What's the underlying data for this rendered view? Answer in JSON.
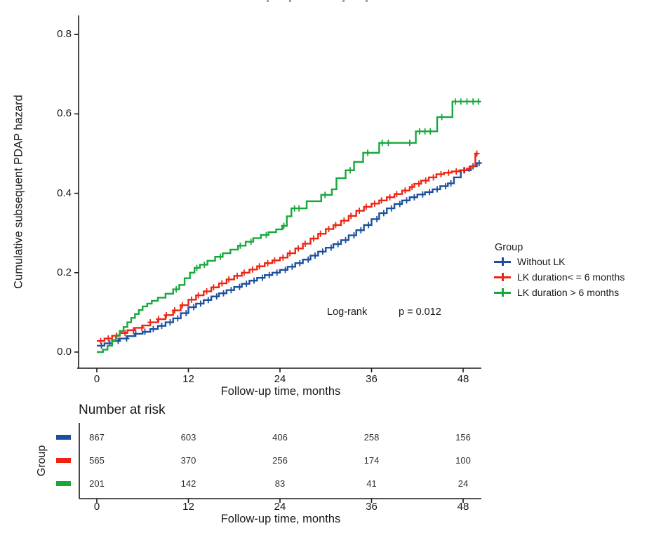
{
  "page": {
    "background": "#ffffff"
  },
  "chart_data": {
    "type": "line",
    "variant": "step-cumulative-hazard (Kaplan-Meier style with censor marks)",
    "title": "",
    "xlabel": "Follow-up time, months",
    "ylabel": "Cumulative subsequent PDAP hazard",
    "xlim": [
      0,
      50.5
    ],
    "ylim": [
      0,
      0.85
    ],
    "grid": false,
    "x_tick_values": [
      0,
      12,
      24,
      36,
      48
    ],
    "x_ticks": [
      "0",
      "12",
      "24",
      "36",
      "48"
    ],
    "y_tick_values": [
      0,
      0.2,
      0.4,
      0.6,
      0.8
    ],
    "y_ticks": [
      "0.0",
      "0.2",
      "0.4",
      "0.6",
      "0.8"
    ],
    "annotation": {
      "test_label": "Log-rank",
      "p_label": "p = 0.012"
    },
    "legend": {
      "title": "Group",
      "position": "right-middle"
    },
    "series": [
      {
        "name": "Without LK",
        "color": "#1c4f9f",
        "end_month": 50.4,
        "points": [
          [
            0,
            0.016
          ],
          [
            1,
            0.022
          ],
          [
            2,
            0.028
          ],
          [
            3,
            0.034
          ],
          [
            4,
            0.04
          ],
          [
            5,
            0.046
          ],
          [
            6,
            0.051
          ],
          [
            7,
            0.058
          ],
          [
            8,
            0.066
          ],
          [
            9,
            0.075
          ],
          [
            10,
            0.085
          ],
          [
            11,
            0.098
          ],
          [
            12,
            0.113
          ],
          [
            13,
            0.122
          ],
          [
            14,
            0.131
          ],
          [
            15,
            0.14
          ],
          [
            16,
            0.148
          ],
          [
            17,
            0.156
          ],
          [
            18,
            0.164
          ],
          [
            19,
            0.172
          ],
          [
            20,
            0.18
          ],
          [
            21,
            0.187
          ],
          [
            22,
            0.194
          ],
          [
            23,
            0.2
          ],
          [
            24,
            0.207
          ],
          [
            25,
            0.215
          ],
          [
            26,
            0.224
          ],
          [
            27,
            0.233
          ],
          [
            28,
            0.243
          ],
          [
            29,
            0.253
          ],
          [
            30,
            0.263
          ],
          [
            31,
            0.272
          ],
          [
            32,
            0.282
          ],
          [
            33,
            0.294
          ],
          [
            34,
            0.307
          ],
          [
            35,
            0.32
          ],
          [
            36,
            0.335
          ],
          [
            37,
            0.35
          ],
          [
            38,
            0.362
          ],
          [
            39,
            0.373
          ],
          [
            40,
            0.382
          ],
          [
            41,
            0.39
          ],
          [
            42,
            0.397
          ],
          [
            43,
            0.403
          ],
          [
            44,
            0.41
          ],
          [
            45,
            0.418
          ],
          [
            46,
            0.425
          ],
          [
            46.8,
            0.44
          ],
          [
            47.7,
            0.458
          ],
          [
            49,
            0.468
          ],
          [
            49.8,
            0.476
          ]
        ],
        "censor_months": [
          0.6,
          1.7,
          2.8,
          3.9,
          5.1,
          6.3,
          7.4,
          8.5,
          9.6,
          10.6,
          11.7,
          12.7,
          13.6,
          14.6,
          15.7,
          16.6,
          17.6,
          18.7,
          19.6,
          20.6,
          21.7,
          22.6,
          23.6,
          24.7,
          25.6,
          26.6,
          27.7,
          28.6,
          29.6,
          30.7,
          31.6,
          32.6,
          33.7,
          34.6,
          35.6,
          36.7,
          37.6,
          38.6,
          39.7,
          40.6,
          41.6,
          42.7,
          43.6,
          44.6,
          45.7,
          46.4,
          48.2,
          49.3,
          50.1
        ]
      },
      {
        "name": "LK duration< = 6 months",
        "color": "#ee2412",
        "end_month": 50.0,
        "points": [
          [
            0,
            0.028
          ],
          [
            1,
            0.034
          ],
          [
            2,
            0.041
          ],
          [
            3,
            0.048
          ],
          [
            4,
            0.055
          ],
          [
            5,
            0.061
          ],
          [
            6,
            0.067
          ],
          [
            7,
            0.075
          ],
          [
            8,
            0.083
          ],
          [
            9,
            0.093
          ],
          [
            10,
            0.105
          ],
          [
            11,
            0.118
          ],
          [
            12,
            0.132
          ],
          [
            13,
            0.143
          ],
          [
            14,
            0.153
          ],
          [
            15,
            0.163
          ],
          [
            16,
            0.173
          ],
          [
            17,
            0.183
          ],
          [
            18,
            0.192
          ],
          [
            19,
            0.2
          ],
          [
            20,
            0.208
          ],
          [
            21,
            0.216
          ],
          [
            22,
            0.224
          ],
          [
            23,
            0.231
          ],
          [
            24,
            0.238
          ],
          [
            25,
            0.249
          ],
          [
            26,
            0.261
          ],
          [
            27,
            0.273
          ],
          [
            28,
            0.286
          ],
          [
            29,
            0.298
          ],
          [
            30,
            0.31
          ],
          [
            31,
            0.32
          ],
          [
            32,
            0.331
          ],
          [
            33,
            0.343
          ],
          [
            34,
            0.356
          ],
          [
            35,
            0.366
          ],
          [
            36,
            0.374
          ],
          [
            37,
            0.382
          ],
          [
            38,
            0.39
          ],
          [
            39,
            0.398
          ],
          [
            40,
            0.407
          ],
          [
            41,
            0.416
          ],
          [
            41.6,
            0.424
          ],
          [
            42.5,
            0.432
          ],
          [
            43.5,
            0.44
          ],
          [
            44.5,
            0.448
          ],
          [
            45.5,
            0.452
          ],
          [
            46.5,
            0.455
          ],
          [
            47.5,
            0.458
          ],
          [
            48.5,
            0.462
          ],
          [
            49,
            0.468
          ],
          [
            49.6,
            0.5
          ]
        ],
        "censor_months": [
          0.5,
          1.5,
          2.6,
          3.7,
          4.8,
          5.9,
          7.0,
          8.1,
          9.1,
          10.2,
          11.2,
          12.4,
          13.3,
          14.4,
          15.3,
          16.4,
          17.3,
          18.4,
          19.3,
          20.4,
          21.3,
          22.4,
          23.3,
          24.4,
          25.3,
          26.4,
          27.3,
          28.4,
          29.3,
          30.4,
          31.3,
          32.4,
          33.3,
          34.4,
          35.3,
          36.4,
          37.3,
          38.4,
          39.3,
          40.4,
          41.3,
          42.2,
          43.1,
          44.1,
          45.1,
          46.1,
          47.1,
          48.1,
          48.8,
          49.8
        ]
      },
      {
        "name": "LK duration > 6 months",
        "color": "#17a83c",
        "end_month": 50.3,
        "points": [
          [
            0,
            0
          ],
          [
            0.8,
            0.006
          ],
          [
            1.4,
            0.016
          ],
          [
            2,
            0.03
          ],
          [
            2.5,
            0.042
          ],
          [
            3,
            0.053
          ],
          [
            3.5,
            0.063
          ],
          [
            4,
            0.075
          ],
          [
            4.5,
            0.086
          ],
          [
            5,
            0.096
          ],
          [
            5.5,
            0.106
          ],
          [
            6,
            0.115
          ],
          [
            6.6,
            0.122
          ],
          [
            7.2,
            0.129
          ],
          [
            8,
            0.137
          ],
          [
            9,
            0.147
          ],
          [
            10,
            0.158
          ],
          [
            10.8,
            0.169
          ],
          [
            11.5,
            0.186
          ],
          [
            12.2,
            0.2
          ],
          [
            12.8,
            0.212
          ],
          [
            13.5,
            0.22
          ],
          [
            14.5,
            0.23
          ],
          [
            15.5,
            0.24
          ],
          [
            16.5,
            0.249
          ],
          [
            17.5,
            0.258
          ],
          [
            18.5,
            0.268
          ],
          [
            19.5,
            0.278
          ],
          [
            20.5,
            0.287
          ],
          [
            21.5,
            0.295
          ],
          [
            22.5,
            0.302
          ],
          [
            23.5,
            0.309
          ],
          [
            24.3,
            0.318
          ],
          [
            24.9,
            0.342
          ],
          [
            25.5,
            0.362
          ],
          [
            27.5,
            0.38
          ],
          [
            29.4,
            0.396
          ],
          [
            30.8,
            0.41
          ],
          [
            31.4,
            0.438
          ],
          [
            32.6,
            0.458
          ],
          [
            33.7,
            0.479
          ],
          [
            34.9,
            0.502
          ],
          [
            37,
            0.527
          ],
          [
            41.8,
            0.556
          ],
          [
            44.6,
            0.592
          ],
          [
            46.6,
            0.631
          ]
        ],
        "censor_months": [
          10.4,
          13.1,
          14.1,
          16.2,
          18.8,
          20.2,
          22.2,
          24.5,
          25.9,
          26.5,
          29.9,
          33.2,
          35.5,
          37.4,
          38.2,
          41.0,
          42.3,
          43.0,
          43.7,
          45.2,
          47.0,
          47.7,
          48.5,
          49.3,
          50.0
        ]
      }
    ]
  },
  "risk_table": {
    "title": "Number at risk",
    "group_axis_label": "Group",
    "xlabel": "Follow-up time, months",
    "x_ticks": [
      "0",
      "12",
      "24",
      "36",
      "48"
    ],
    "rows": [
      {
        "group": "Without LK",
        "color": "#1c4f9f",
        "counts": [
          "867",
          "603",
          "406",
          "258",
          "156"
        ]
      },
      {
        "group": "LK duration< = 6 months",
        "color": "#ee2412",
        "counts": [
          "565",
          "370",
          "256",
          "174",
          "100"
        ]
      },
      {
        "group": "LK duration > 6 months",
        "color": "#17a83c",
        "counts": [
          "201",
          "142",
          "83",
          "41",
          "24"
        ]
      }
    ]
  }
}
